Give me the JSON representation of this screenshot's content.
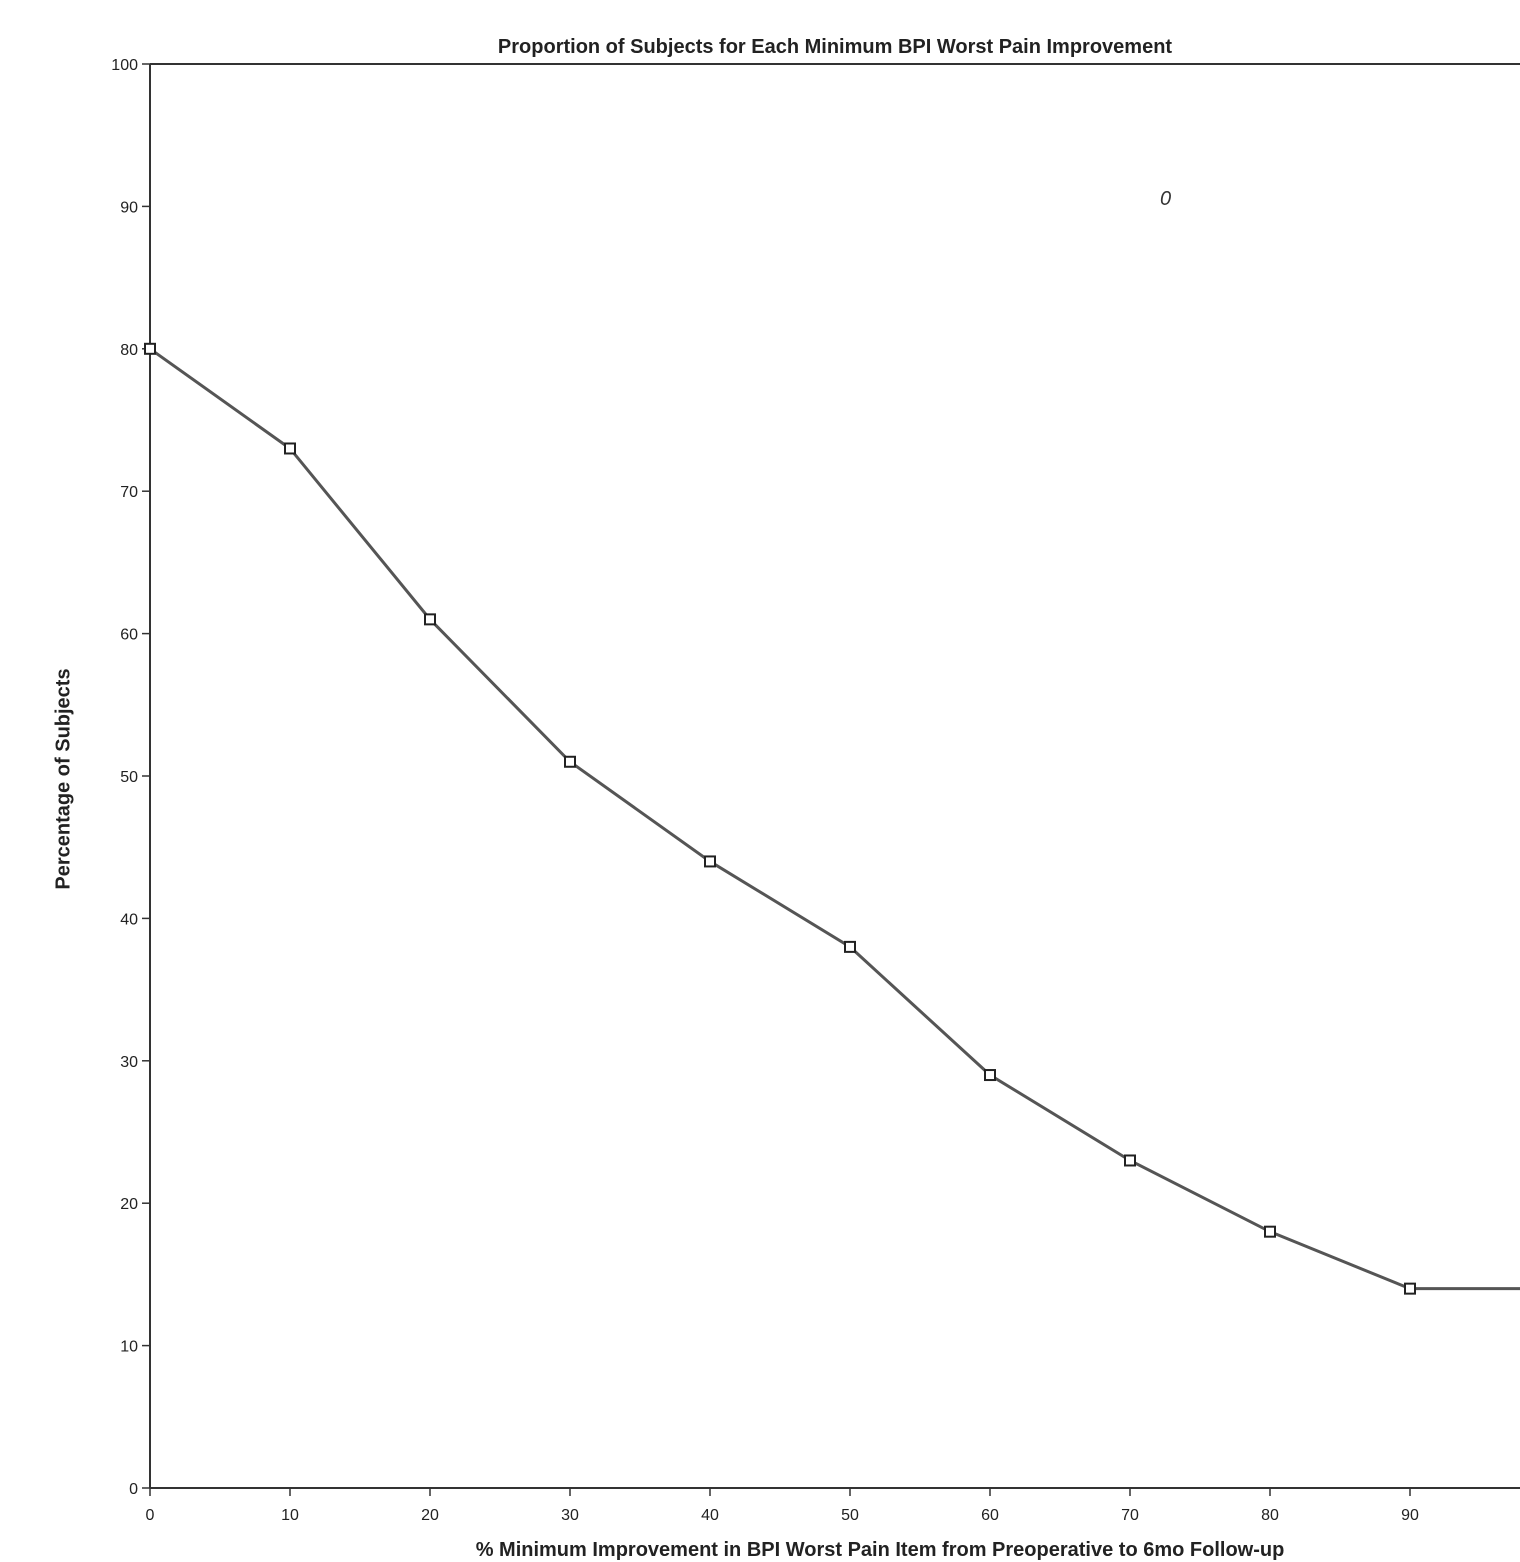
{
  "chart_data": {
    "type": "line",
    "title": "Proportion of Subjects for Each Minimum BPI Worst Pain Improvement",
    "xlabel": "% Minimum Improvement in BPI Worst Pain Item from Preoperative to 6mo Follow-up",
    "ylabel": "Percentage of Subjects",
    "xlim": [
      0,
      100
    ],
    "ylim": [
      0,
      100
    ],
    "xticks": [
      0,
      10,
      20,
      30,
      40,
      50,
      60,
      70,
      80,
      90
    ],
    "yticks": [
      0,
      10,
      20,
      30,
      40,
      50,
      60,
      70,
      80,
      90,
      100
    ],
    "grid": false,
    "series": [
      {
        "x": [
          0,
          10,
          20,
          30,
          40,
          50,
          60,
          70,
          80,
          90,
          100
        ],
        "y": [
          80,
          73,
          61,
          51,
          44,
          38,
          29,
          23,
          18,
          14,
          14
        ],
        "markers": [
          true,
          true,
          true,
          true,
          true,
          true,
          true,
          true,
          true,
          true,
          false
        ]
      }
    ],
    "stray_mark": "0"
  },
  "colors": {
    "line": "#555555",
    "axis": "#333333",
    "text": "#222222"
  }
}
